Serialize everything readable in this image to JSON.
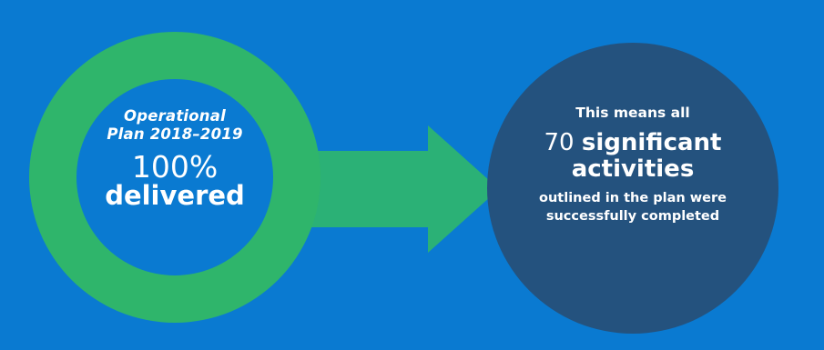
{
  "left_ring": {
    "plan_line_1": "Operational",
    "plan_line_2": "Plan 2018–2019",
    "percent": "100%",
    "delivered": "delivered"
  },
  "right_circle": {
    "intro": "This means all",
    "count": "70",
    "count_word": "significant",
    "activities": "activities",
    "outlined_line_1": "outlined in the plan were",
    "outlined_line_2": "successfully completed"
  },
  "colors": {
    "background": "#0a7ad1",
    "ring": "#2fb56b",
    "arrow": "#2bb176",
    "right_circle": "#24527e"
  }
}
